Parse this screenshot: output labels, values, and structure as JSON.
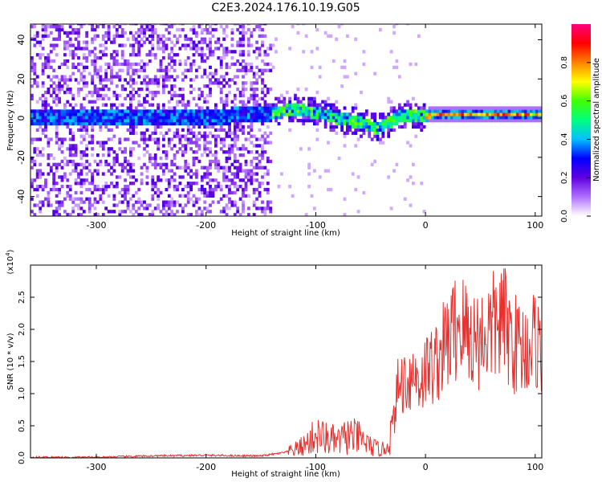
{
  "title": "C2E3.2024.176.10.19.G05",
  "chart_data": [
    {
      "type": "heatmap",
      "xlabel": "Height of straight line (km)",
      "ylabel": "Frequency (Hz)",
      "xlim": [
        -360,
        106
      ],
      "ylim": [
        -50,
        48
      ],
      "xticks": [
        -300,
        -200,
        -100,
        0,
        100
      ],
      "yticks": [
        -40,
        -20,
        0,
        20,
        40
      ],
      "colorbar": {
        "label": "Normalized spectral amplitude",
        "range": [
          0.0,
          1.0
        ],
        "ticks": [
          "0.0",
          "0.2",
          "0.4",
          "0.6",
          "0.8"
        ],
        "colors": [
          "#ffffff",
          "#b070ff",
          "#6000e0",
          "#0000ff",
          "#00c0ff",
          "#00ff80",
          "#40ff00",
          "#ffff00",
          "#ff8000",
          "#ff0000",
          "#ff0080"
        ]
      },
      "ridge": {
        "x": [
          -360,
          -300,
          -250,
          -200,
          -150,
          -120,
          -100,
          -80,
          -60,
          -45,
          -35,
          -25,
          -15,
          -5,
          5,
          30,
          60,
          106
        ],
        "y": [
          0,
          0,
          -1,
          0,
          1,
          4,
          2,
          -1,
          -3,
          -6,
          -3,
          0,
          1,
          0,
          1,
          1,
          1,
          1
        ]
      },
      "grid": false
    },
    {
      "type": "line",
      "xlabel": "Height of straight line (km)",
      "ylabel": "SNR (10 * v/v)",
      "y_multiplier": "(x10",
      "y_multiplier_exp": "4",
      "y_multiplier_close": ")",
      "xlim": [
        -360,
        106
      ],
      "ylim": [
        0,
        3.0
      ],
      "xticks": [
        -300,
        -200,
        -100,
        0,
        100
      ],
      "yticks": [
        "0.0",
        "0.5",
        "1.0",
        "1.5",
        "2.0",
        "2.5"
      ],
      "series": [
        {
          "color": "#e8302e",
          "x": [
            -360,
            -300,
            -250,
            -200,
            -150,
            -130,
            -120,
            -110,
            -100,
            -90,
            -80,
            -70,
            -60,
            -50,
            -40,
            -35,
            -30,
            -25,
            -20,
            -15,
            -10,
            -5,
            0,
            10,
            20,
            30,
            40,
            50,
            60,
            70,
            80,
            90,
            100,
            106
          ],
          "y": [
            0.01,
            0.01,
            0.03,
            0.04,
            0.03,
            0.08,
            0.12,
            0.2,
            0.35,
            0.3,
            0.25,
            0.35,
            0.3,
            0.18,
            0.12,
            0.18,
            0.45,
            1.1,
            1.2,
            1.25,
            1.3,
            1.2,
            1.35,
            1.5,
            1.8,
            2.1,
            1.9,
            1.85,
            2.0,
            2.15,
            1.8,
            1.7,
            1.85,
            1.75
          ]
        }
      ],
      "grid": false
    }
  ]
}
